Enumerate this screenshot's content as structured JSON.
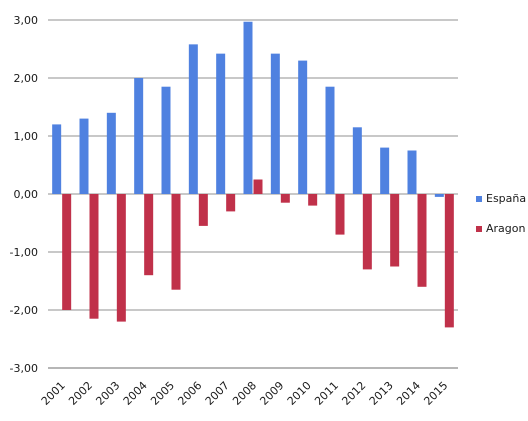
{
  "chart_data": {
    "type": "bar",
    "categories": [
      "2001",
      "2002",
      "2003",
      "2004",
      "2005",
      "2006",
      "2007",
      "2008",
      "2009",
      "2010",
      "2011",
      "2012",
      "2013",
      "2014",
      "2015"
    ],
    "series": [
      {
        "name": "España",
        "color": "#4f81e0",
        "values": [
          1.2,
          1.3,
          1.4,
          2.0,
          1.85,
          2.58,
          2.42,
          2.97,
          2.42,
          2.3,
          1.85,
          1.15,
          0.8,
          0.75,
          -0.05
        ]
      },
      {
        "name": "Aragon",
        "color": "#c0314a",
        "values": [
          -2.0,
          -2.15,
          -2.2,
          -1.4,
          -1.65,
          -0.55,
          -0.3,
          0.25,
          -0.15,
          -0.2,
          -0.7,
          -1.3,
          -1.25,
          -1.6,
          -2.3
        ]
      }
    ],
    "yticks": [
      "3,00",
      "2,00",
      "1,00",
      "0,00",
      "-1,00",
      "-2,00",
      "-3,00"
    ],
    "ylim": [
      -3,
      3
    ],
    "grid": true,
    "legend_position": "right"
  }
}
